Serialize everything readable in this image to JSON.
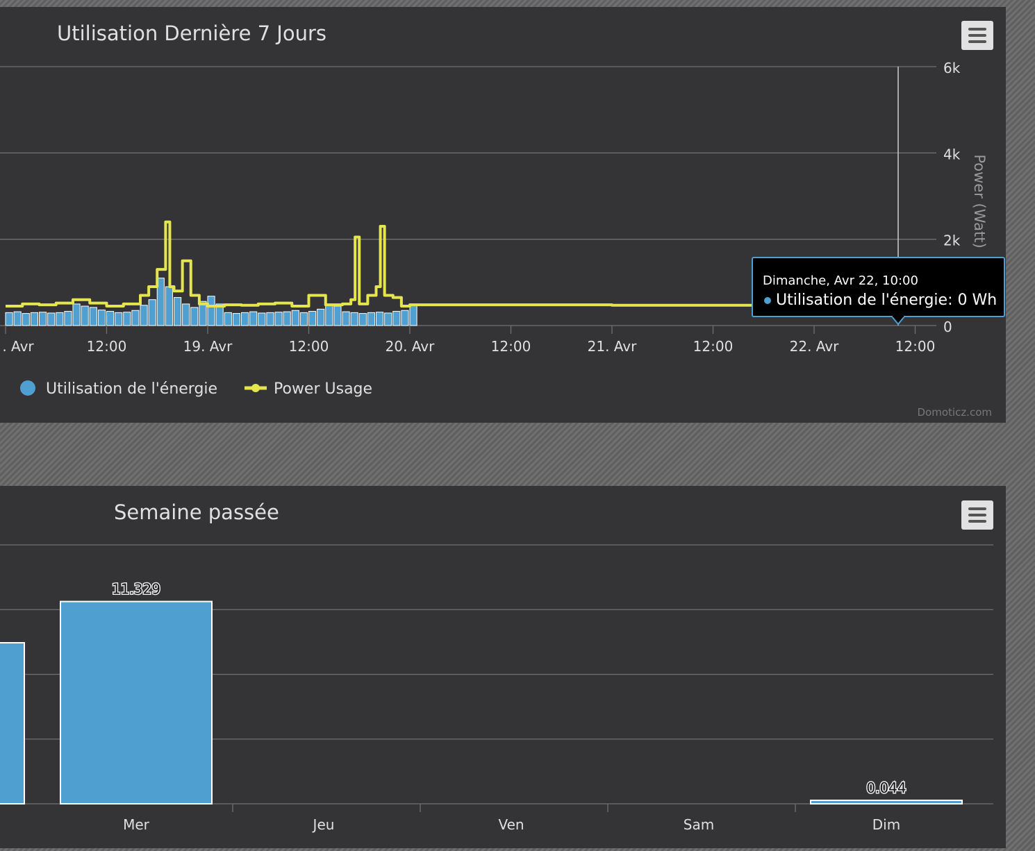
{
  "charts": {
    "seven_days": {
      "title": "Utilisation Dernière 7 Jours",
      "credit": "Domoticz.com"
    },
    "last_week": {
      "title": "Semaine passée"
    }
  },
  "tooltip": {
    "date": "Dimanche, Avr 22, 10:00",
    "series": "Utilisation de l'énergie",
    "value": "0 Wh",
    "bullet_color": "#4f9fd1",
    "border_color": "#4f9fd1"
  },
  "icons": {
    "menu": "hamburger-menu-icon",
    "legend_energy": "circle-marker-icon",
    "legend_power": "line-circle-marker-icon"
  },
  "colors": {
    "bars": "#4f9fd1",
    "power_line": "#e5e54f",
    "panel_bg": "#343436",
    "grid": "#707070",
    "text": "#e0e0e0",
    "tooltip_bg": "#000000"
  },
  "chart_data": [
    {
      "type": "line",
      "title": "Utilisation Dernière 7 Jours",
      "x_type": "datetime",
      "x_tick_labels": [
        ". Avr",
        "12:00",
        "19. Avr",
        "12:00",
        "20. Avr",
        "12:00",
        "21. Avr",
        "12:00",
        "22. Avr",
        "12:00"
      ],
      "x_tick_datetimes": [
        "2018-04-18T00:00",
        "2018-04-18T12:00",
        "2018-04-19T00:00",
        "2018-04-19T12:00",
        "2018-04-20T00:00",
        "2018-04-20T12:00",
        "2018-04-21T00:00",
        "2018-04-21T12:00",
        "2018-04-22T00:00",
        "2018-04-22T12:00"
      ],
      "y_axis_right": {
        "label": "Power (Watt)",
        "ticks": [
          "0",
          "2k",
          "4k",
          "6k"
        ],
        "range": [
          0,
          6000
        ]
      },
      "grid": true,
      "legend_position": "bottom-left",
      "series": [
        {
          "name": "Utilisation de l'énergie",
          "type": "column",
          "color": "#4f9fd1",
          "x": [
            "2018-04-18T00:00",
            "2018-04-18T01:00",
            "2018-04-18T02:00",
            "2018-04-18T03:00",
            "2018-04-18T04:00",
            "2018-04-18T05:00",
            "2018-04-18T06:00",
            "2018-04-18T07:00",
            "2018-04-18T08:00",
            "2018-04-18T09:00",
            "2018-04-18T10:00",
            "2018-04-18T11:00",
            "2018-04-18T12:00",
            "2018-04-18T13:00",
            "2018-04-18T14:00",
            "2018-04-18T15:00",
            "2018-04-18T16:00",
            "2018-04-18T17:00",
            "2018-04-18T18:00",
            "2018-04-18T19:00",
            "2018-04-18T20:00",
            "2018-04-18T21:00",
            "2018-04-18T22:00",
            "2018-04-18T23:00",
            "2018-04-19T00:00",
            "2018-04-19T01:00",
            "2018-04-19T02:00",
            "2018-04-19T03:00",
            "2018-04-19T04:00",
            "2018-04-19T05:00",
            "2018-04-19T06:00",
            "2018-04-19T07:00",
            "2018-04-19T08:00",
            "2018-04-19T09:00",
            "2018-04-19T10:00",
            "2018-04-19T11:00",
            "2018-04-19T12:00",
            "2018-04-19T13:00",
            "2018-04-19T14:00",
            "2018-04-19T15:00",
            "2018-04-19T16:00",
            "2018-04-19T17:00",
            "2018-04-19T18:00",
            "2018-04-19T19:00",
            "2018-04-19T20:00",
            "2018-04-19T21:00",
            "2018-04-19T22:00",
            "2018-04-19T23:00",
            "2018-04-20T00:00"
          ],
          "values": [
            300,
            320,
            280,
            300,
            310,
            290,
            300,
            330,
            500,
            450,
            420,
            360,
            330,
            300,
            310,
            350,
            470,
            600,
            1100,
            900,
            650,
            500,
            420,
            560,
            680,
            500,
            300,
            280,
            300,
            320,
            290,
            300,
            310,
            320,
            350,
            300,
            330,
            380,
            480,
            450,
            320,
            300,
            280,
            300,
            310,
            290,
            330,
            350,
            500
          ]
        },
        {
          "name": "Power Usage",
          "type": "line",
          "color": "#e5e54f",
          "x": [
            "2018-04-18T00:00",
            "2018-04-18T02:00",
            "2018-04-18T04:00",
            "2018-04-18T06:00",
            "2018-04-18T08:00",
            "2018-04-18T10:00",
            "2018-04-18T12:00",
            "2018-04-18T14:00",
            "2018-04-18T16:00",
            "2018-04-18T17:00",
            "2018-04-18T18:00",
            "2018-04-18T19:00",
            "2018-04-18T19:30",
            "2018-04-18T20:00",
            "2018-04-18T21:00",
            "2018-04-18T22:00",
            "2018-04-18T23:00",
            "2018-04-19T00:00",
            "2018-04-19T02:00",
            "2018-04-19T04:00",
            "2018-04-19T06:00",
            "2018-04-19T08:00",
            "2018-04-19T10:00",
            "2018-04-19T12:00",
            "2018-04-19T14:00",
            "2018-04-19T16:00",
            "2018-04-19T17:00",
            "2018-04-19T17:30",
            "2018-04-19T18:00",
            "2018-04-19T19:00",
            "2018-04-19T20:00",
            "2018-04-19T20:30",
            "2018-04-19T21:00",
            "2018-04-19T22:00",
            "2018-04-19T23:00",
            "2018-04-20T00:00",
            "2018-04-21T00:00",
            "2018-04-22T00:00",
            "2018-04-22T10:00"
          ],
          "values": [
            450,
            500,
            480,
            520,
            600,
            520,
            450,
            500,
            700,
            900,
            1300,
            2400,
            900,
            800,
            1500,
            700,
            500,
            450,
            480,
            470,
            500,
            520,
            450,
            700,
            480,
            500,
            600,
            2050,
            500,
            700,
            900,
            2300,
            700,
            650,
            450,
            480,
            470,
            460,
            450
          ]
        }
      ],
      "tooltip": {
        "x": "Dimanche, Avr 22, 10:00",
        "series": "Utilisation de l'énergie",
        "value": "0 Wh"
      }
    },
    {
      "type": "bar",
      "title": "Semaine passée",
      "categories": [
        "Mer",
        "Jeu",
        "Ven",
        "Sam",
        "Dim"
      ],
      "values": [
        11.329,
        null,
        null,
        null,
        0.044
      ],
      "data_labels": [
        "11.329",
        "",
        "",
        "",
        "0.044"
      ],
      "color": "#4f9fd1",
      "grid": true,
      "ylim": [
        0,
        14.5
      ]
    }
  ]
}
